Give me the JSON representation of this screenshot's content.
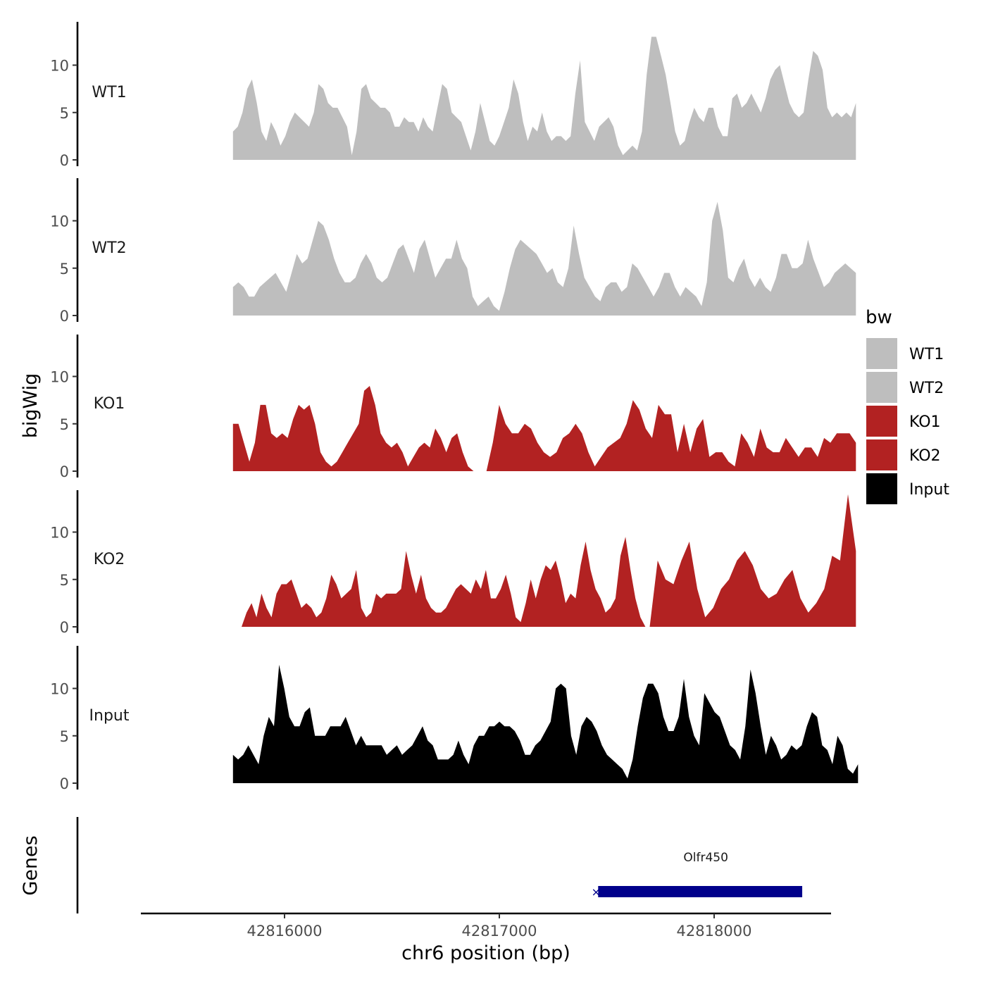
{
  "chart_data": {
    "type": "area",
    "ylabel": "bigWig",
    "genes_label": "Genes",
    "xlabel": "chr6 position (bp)",
    "x_ticks": [
      42816000,
      42817000,
      42818000
    ],
    "x_range": [
      42815300,
      42818550
    ],
    "y_ticks": [
      0,
      5,
      10
    ],
    "ylim": [
      0,
      14.5
    ],
    "legend": {
      "title": "bw",
      "position": "right",
      "entries": [
        {
          "label": "WT1",
          "color": "#bebebe"
        },
        {
          "label": "WT2",
          "color": "#bebebe"
        },
        {
          "label": "KO1",
          "color": "#b22222"
        },
        {
          "label": "KO2",
          "color": "#b22222"
        },
        {
          "label": "Input",
          "color": "#000000"
        }
      ]
    },
    "tracks": [
      {
        "name": "WT1",
        "color": "#bebebe",
        "start": 42815760,
        "end": 42818660,
        "values": [
          3,
          3.5,
          5,
          7.5,
          8.5,
          6,
          3,
          2,
          4,
          3,
          1.5,
          2.5,
          4,
          5,
          4.5,
          4,
          3.5,
          5,
          8,
          7.5,
          6,
          5.5,
          5.5,
          4.5,
          3.5,
          0.5,
          3,
          7.5,
          8,
          6.5,
          6,
          5.5,
          5.5,
          5,
          3.5,
          3.5,
          4.5,
          4,
          4,
          3,
          4.5,
          3.5,
          3,
          5.5,
          8,
          7.5,
          5,
          4.5,
          4,
          2.5,
          1,
          3,
          6,
          4,
          2,
          1.5,
          2.5,
          4,
          5.5,
          8.5,
          7,
          4,
          2,
          3.5,
          3,
          5,
          3,
          2,
          2.5,
          2.5,
          2,
          2.5,
          7,
          10.5,
          4,
          3,
          2,
          3.5,
          4,
          4.5,
          3.5,
          1.5,
          0.5,
          1,
          1.5,
          1,
          3,
          9,
          13,
          13,
          11,
          9,
          6,
          3,
          1.5,
          2,
          4,
          5.5,
          4.5,
          4,
          5.5,
          5.5,
          3.5,
          2.5,
          2.5,
          6.5,
          7,
          5.5,
          6,
          7,
          6,
          5,
          6.5,
          8.5,
          9.5,
          10,
          8,
          6,
          5,
          4.5,
          5,
          8.5,
          11.5,
          11,
          9.5,
          5.5,
          4.5,
          5,
          4.5,
          5,
          4.5,
          6
        ]
      },
      {
        "name": "WT2",
        "color": "#bebebe",
        "start": 42815760,
        "end": 42818660,
        "values": [
          3,
          3.5,
          3,
          2,
          2,
          3,
          3.5,
          4,
          4.5,
          3.5,
          2.5,
          4.5,
          6.5,
          5.5,
          6,
          8,
          10,
          9.5,
          8,
          6,
          4.5,
          3.5,
          3.5,
          4,
          5.5,
          6.5,
          5.5,
          4,
          3.5,
          4,
          5.5,
          7,
          7.5,
          6,
          4.5,
          7,
          8,
          6,
          4,
          5,
          6,
          6,
          8,
          6,
          5,
          2,
          1,
          1.5,
          2,
          1,
          0.5,
          2.5,
          5,
          7,
          8,
          7.5,
          7,
          6.5,
          5.5,
          4.5,
          5,
          3.5,
          3,
          5,
          9.5,
          6.5,
          4,
          3,
          2,
          1.5,
          3,
          3.5,
          3.5,
          2.5,
          3,
          5.5,
          5,
          4,
          3,
          2,
          3,
          4.5,
          4.5,
          3,
          2,
          3,
          2.5,
          2,
          1,
          3.5,
          10,
          12,
          9,
          4,
          3.5,
          5,
          6,
          4,
          3,
          4,
          3,
          2.5,
          4,
          6.5,
          6.5,
          5,
          5,
          5.5,
          8,
          6,
          4.5,
          3,
          3.5,
          4.5,
          5,
          5.5,
          5,
          4.5
        ]
      },
      {
        "name": "KO1",
        "color": "#b22222",
        "segments": [
          {
            "start": 42815760,
            "end": 42816880,
            "values": [
              5,
              5,
              3,
              1,
              3,
              7,
              7,
              4,
              3.5,
              4,
              3.5,
              5.5,
              7,
              6.5,
              7,
              5,
              2,
              1,
              0.5,
              1,
              2,
              3,
              4,
              5,
              8.5,
              9,
              7,
              4,
              3,
              2.5,
              3,
              2,
              0.5,
              1.5,
              2.5,
              3,
              2.5,
              4.5,
              3.5,
              2,
              3.5,
              4,
              2,
              0.5,
              0
            ]
          },
          {
            "start": 42816940,
            "end": 42818660,
            "values": [
              0,
              3,
              7,
              5,
              4,
              4,
              5,
              4.5,
              3,
              2,
              1.5,
              2,
              3.5,
              4,
              5,
              4,
              2,
              0.5,
              1.5,
              2.5,
              3,
              3.5,
              5,
              7.5,
              6.5,
              4.5,
              3.5,
              7,
              6,
              6,
              2,
              5,
              2,
              4.5,
              5.5,
              1.5,
              2,
              2,
              1,
              0.5,
              4,
              3,
              1.5,
              4.5,
              2.5,
              2,
              2,
              3.5,
              2.5,
              1.5,
              2.5,
              2.5,
              1.5,
              3.5,
              3,
              4,
              4,
              4,
              3
            ]
          }
        ]
      },
      {
        "name": "KO2",
        "color": "#b22222",
        "segments": [
          {
            "start": 42815800,
            "end": 42817680,
            "values": [
              0,
              1.5,
              2.5,
              1,
              3.5,
              2,
              1,
              3.5,
              4.5,
              4.5,
              5,
              3.5,
              2,
              2.5,
              2,
              1,
              1.5,
              3,
              5.5,
              4.5,
              3,
              3.5,
              4,
              6,
              2,
              1,
              1.5,
              3.5,
              3,
              3.5,
              3.5,
              3.5,
              4,
              8,
              5.5,
              3.5,
              5.5,
              3,
              2,
              1.5,
              1.5,
              2,
              3,
              4,
              4.5,
              4,
              3.5,
              5,
              4,
              6,
              3,
              3,
              4,
              5.5,
              3.5,
              1,
              0.5,
              2.5,
              5,
              3,
              5,
              6.5,
              6,
              7,
              5,
              2.5,
              3.5,
              3,
              6.5,
              9,
              6,
              4,
              3,
              1.5,
              2,
              3,
              7.5,
              9.5,
              6,
              3,
              1,
              0
            ]
          },
          {
            "start": 42817700,
            "end": 42818660,
            "values": [
              0,
              7,
              5,
              4.5,
              7,
              9,
              4,
              1,
              2,
              4,
              5,
              7,
              8,
              6.5,
              4,
              3,
              3.5,
              5,
              6,
              3,
              1.5,
              2.5,
              4,
              7.5,
              7,
              14,
              8
            ]
          }
        ]
      },
      {
        "name": "Input",
        "color": "#000000",
        "start": 42815760,
        "end": 42818670,
        "values": [
          3,
          2.5,
          3,
          4,
          3,
          2,
          5,
          7,
          6,
          12.5,
          10,
          7,
          6,
          6,
          7.5,
          8,
          5,
          5,
          5,
          6,
          6,
          6,
          7,
          5.5,
          4,
          5,
          4,
          4,
          4,
          4,
          3,
          3.5,
          4,
          3,
          3.5,
          4,
          5,
          6,
          4.5,
          4,
          2.5,
          2.5,
          2.5,
          3,
          4.5,
          3,
          2,
          4,
          5,
          5,
          6,
          6,
          6.5,
          6,
          6,
          5.5,
          4.5,
          3,
          3,
          4,
          4.5,
          5.5,
          6.5,
          10,
          10.5,
          10,
          5,
          3,
          6,
          7,
          6.5,
          5.5,
          4,
          3,
          2.5,
          2,
          1.5,
          0.5,
          2.5,
          6,
          9,
          10.5,
          10.5,
          9.5,
          7,
          5.5,
          5.5,
          7,
          11,
          7,
          5,
          4,
          9.5,
          8.5,
          7.5,
          7,
          5.5,
          4,
          3.5,
          2.5,
          6,
          12,
          9.5,
          6,
          3,
          5,
          4,
          2.5,
          3,
          4,
          3.5,
          4,
          6,
          7.5,
          7,
          4,
          3.5,
          2,
          5,
          4,
          1.5,
          1,
          2
        ]
      }
    ],
    "genes": [
      {
        "name": "Olfr450",
        "start": 42817460,
        "end": 42818410,
        "color": "#00008b",
        "strand_mark": "×"
      }
    ]
  }
}
